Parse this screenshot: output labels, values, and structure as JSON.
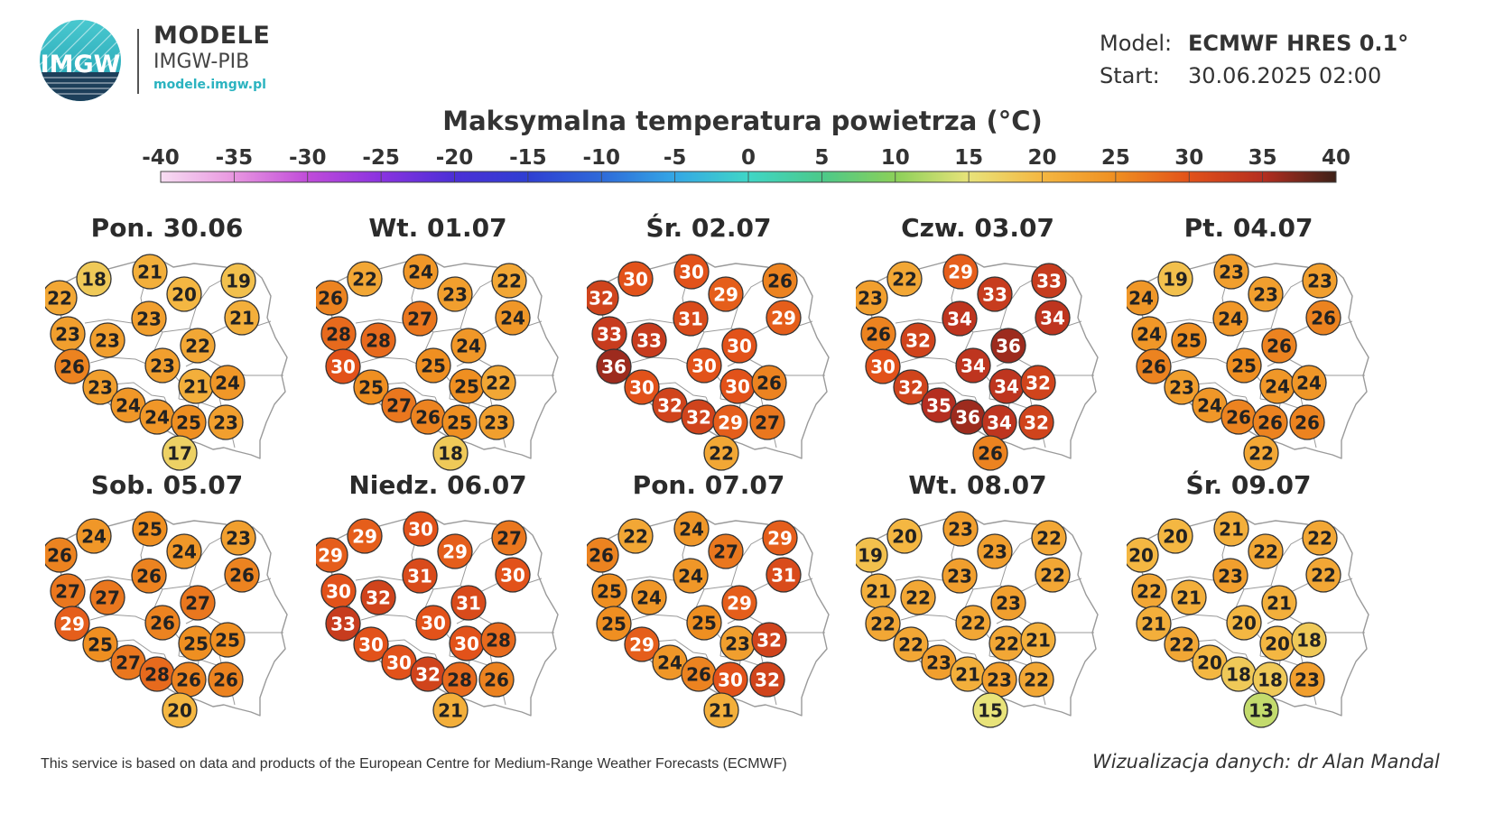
{
  "brand": {
    "logo_text": "IMGW",
    "title": "MODELE",
    "subtitle": "IMGW-PIB",
    "url": "modele.imgw.pl"
  },
  "info": {
    "model_key": "Model:",
    "model_val": "ECMWF HRES 0.1°",
    "start_key": "Start:",
    "start_val": "30.06.2025 02:00"
  },
  "title": "Maksymalna temperatura powietrza (°C)",
  "colorbar": {
    "ticks": [
      "-40",
      "-35",
      "-30",
      "-25",
      "-20",
      "-15",
      "-10",
      "-5",
      "0",
      "5",
      "10",
      "15",
      "20",
      "25",
      "30",
      "35",
      "40"
    ],
    "stops": [
      {
        "v": -40,
        "c": "#f7ddf2"
      },
      {
        "v": -35,
        "c": "#e896e0"
      },
      {
        "v": -30,
        "c": "#c04cd9"
      },
      {
        "v": -25,
        "c": "#8a33e0"
      },
      {
        "v": -20,
        "c": "#4b2fd6"
      },
      {
        "v": -15,
        "c": "#2f3fd2"
      },
      {
        "v": -10,
        "c": "#2e6ad9"
      },
      {
        "v": -5,
        "c": "#34a7e5"
      },
      {
        "v": 0,
        "c": "#3fd6c6"
      },
      {
        "v": 5,
        "c": "#4cc98a"
      },
      {
        "v": 10,
        "c": "#8bd059"
      },
      {
        "v": 15,
        "c": "#e8e37a"
      },
      {
        "v": 20,
        "c": "#f4b742"
      },
      {
        "v": 25,
        "c": "#ef8f21"
      },
      {
        "v": 30,
        "c": "#e2521a"
      },
      {
        "v": 35,
        "c": "#b52e20"
      },
      {
        "v": 40,
        "c": "#3d2118"
      }
    ]
  },
  "map_colors": {
    "land": "#ffffff",
    "border": "#9a9a9a"
  },
  "panels": [
    {
      "day": "Pon. 30.06",
      "values": [
        18,
        21,
        19,
        22,
        20,
        21,
        23,
        23,
        23,
        22,
        26,
        23,
        21,
        24,
        23,
        24,
        24,
        25,
        23,
        17
      ]
    },
    {
      "day": "Wt. 01.07",
      "values": [
        22,
        24,
        22,
        26,
        23,
        24,
        28,
        28,
        27,
        24,
        30,
        25,
        25,
        22,
        25,
        27,
        26,
        25,
        23,
        18
      ]
    },
    {
      "day": "Śr. 02.07",
      "values": [
        30,
        30,
        26,
        32,
        29,
        29,
        33,
        33,
        31,
        30,
        36,
        30,
        30,
        26,
        30,
        32,
        32,
        29,
        27,
        22
      ]
    },
    {
      "day": "Czw. 03.07",
      "values": [
        22,
        29,
        33,
        23,
        33,
        34,
        26,
        32,
        34,
        36,
        30,
        34,
        34,
        32,
        32,
        35,
        36,
        34,
        32,
        26
      ]
    },
    {
      "day": "Pt. 04.07",
      "values": [
        19,
        23,
        23,
        24,
        23,
        26,
        24,
        25,
        24,
        26,
        26,
        25,
        24,
        24,
        23,
        24,
        26,
        26,
        26,
        22
      ]
    },
    {
      "day": "Sob. 05.07",
      "values": [
        24,
        25,
        23,
        26,
        24,
        26,
        27,
        27,
        26,
        27,
        29,
        26,
        25,
        25,
        25,
        27,
        28,
        26,
        26,
        20
      ]
    },
    {
      "day": "Niedz. 06.07",
      "values": [
        29,
        30,
        27,
        29,
        29,
        30,
        30,
        32,
        31,
        31,
        33,
        30,
        30,
        28,
        30,
        30,
        32,
        28,
        26,
        21
      ]
    },
    {
      "day": "Pon. 07.07",
      "values": [
        22,
        24,
        29,
        26,
        27,
        31,
        25,
        24,
        24,
        29,
        25,
        25,
        23,
        32,
        29,
        24,
        26,
        30,
        32,
        21
      ]
    },
    {
      "day": "Wt. 08.07",
      "values": [
        20,
        23,
        22,
        19,
        23,
        22,
        21,
        22,
        23,
        23,
        22,
        22,
        22,
        21,
        22,
        23,
        21,
        23,
        22,
        15
      ]
    },
    {
      "day": "Śr. 09.07",
      "values": [
        20,
        21,
        22,
        20,
        22,
        22,
        22,
        21,
        23,
        21,
        21,
        20,
        20,
        18,
        22,
        20,
        18,
        18,
        23,
        13
      ]
    }
  ],
  "footer": {
    "attribution": "This service is based on data and products of the European Centre for Medium-Range Weather Forecasts (ECMWF)",
    "credit": "Wizualizacja danych: dr Alan Mandal"
  }
}
